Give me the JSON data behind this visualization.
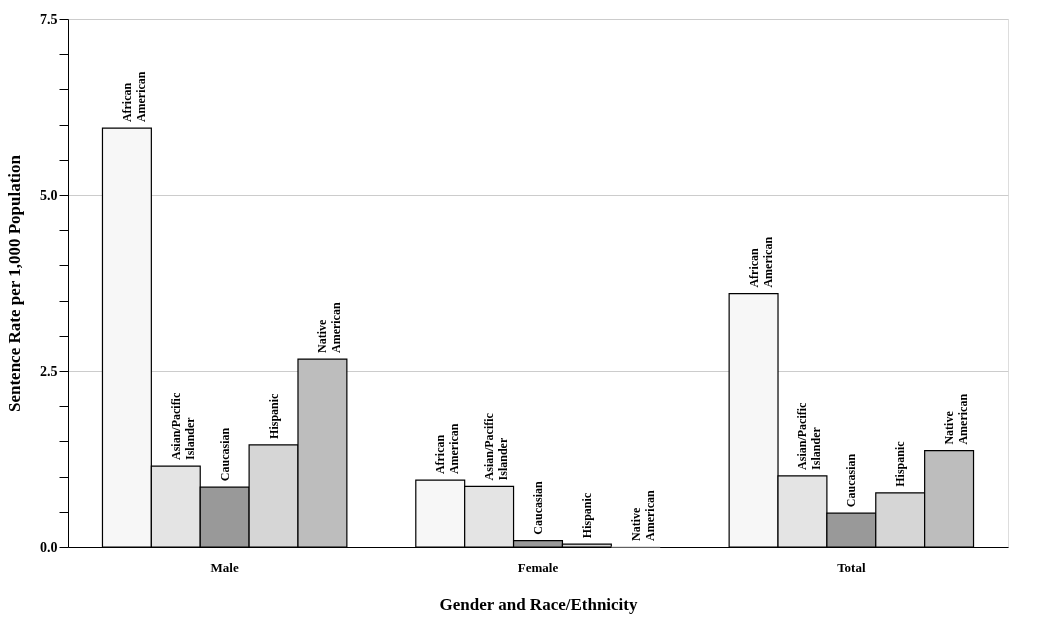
{
  "chart_data": {
    "type": "bar",
    "xlabel": "Gender and Race/Ethnicity",
    "ylabel": "Sentence Rate per 1,000 Population",
    "categories": [
      "Male",
      "Female",
      "Total"
    ],
    "series": [
      {
        "name": "African American",
        "color": "#f7f7f7",
        "values": [
          5.95,
          0.95,
          3.6
        ]
      },
      {
        "name": "Asian/Pacific Islander",
        "color": "#e4e4e4",
        "values": [
          1.15,
          0.86,
          1.01
        ]
      },
      {
        "name": "Caucasian",
        "color": "#999999",
        "values": [
          0.85,
          0.09,
          0.48
        ]
      },
      {
        "name": "Hispanic",
        "color": "#d6d6d6",
        "values": [
          1.45,
          0.04,
          0.77
        ]
      },
      {
        "name": "Native American",
        "color": "#bdbdbd",
        "values": [
          2.67,
          0.0,
          1.37
        ]
      }
    ],
    "ylim": [
      0,
      7.5
    ],
    "yticks": [
      {
        "value": 0,
        "label": "0.0"
      },
      {
        "value": 0.5,
        "label": null
      },
      {
        "value": 1,
        "label": null
      },
      {
        "value": 1.5,
        "label": null
      },
      {
        "value": 2,
        "label": null
      },
      {
        "value": 2.5,
        "label": "2.5"
      },
      {
        "value": 3,
        "label": null
      },
      {
        "value": 3.5,
        "label": null
      },
      {
        "value": 4,
        "label": null
      },
      {
        "value": 4.5,
        "label": null
      },
      {
        "value": 5,
        "label": "5.0"
      },
      {
        "value": 5.5,
        "label": null
      },
      {
        "value": 6,
        "label": null
      },
      {
        "value": 6.5,
        "label": null
      },
      {
        "value": 7,
        "label": null
      },
      {
        "value": 7.5,
        "label": "7.5"
      }
    ],
    "grid": "y",
    "legend": false
  }
}
